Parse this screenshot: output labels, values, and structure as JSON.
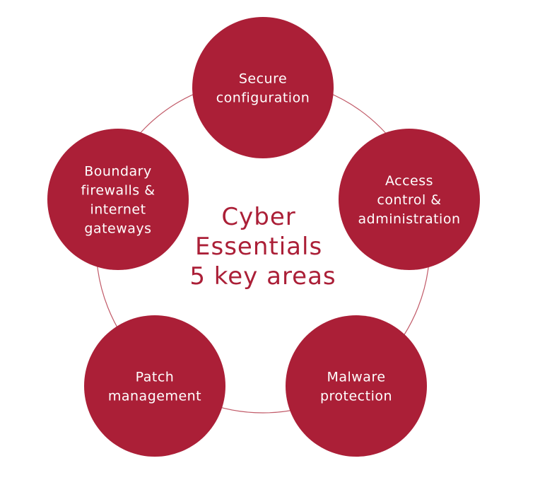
{
  "title": {
    "lines": [
      "Cyber",
      "Essentials",
      "5 key areas"
    ]
  },
  "areas": [
    {
      "id": "secure-configuration",
      "lines": [
        "Secure",
        "configuration"
      ]
    },
    {
      "id": "access-control",
      "lines": [
        "Access",
        "control &",
        "administration"
      ]
    },
    {
      "id": "malware-protection",
      "lines": [
        "Malware",
        "protection"
      ]
    },
    {
      "id": "patch-management",
      "lines": [
        "Patch",
        "management"
      ]
    },
    {
      "id": "boundary-firewalls",
      "lines": [
        "Boundary",
        "firewalls &",
        "internet",
        "gateways"
      ]
    }
  ],
  "colors": {
    "circle": "#ab1f37",
    "circle_text": "#ffffff",
    "center_text": "#ab1f37",
    "ring": "#c15a68"
  }
}
